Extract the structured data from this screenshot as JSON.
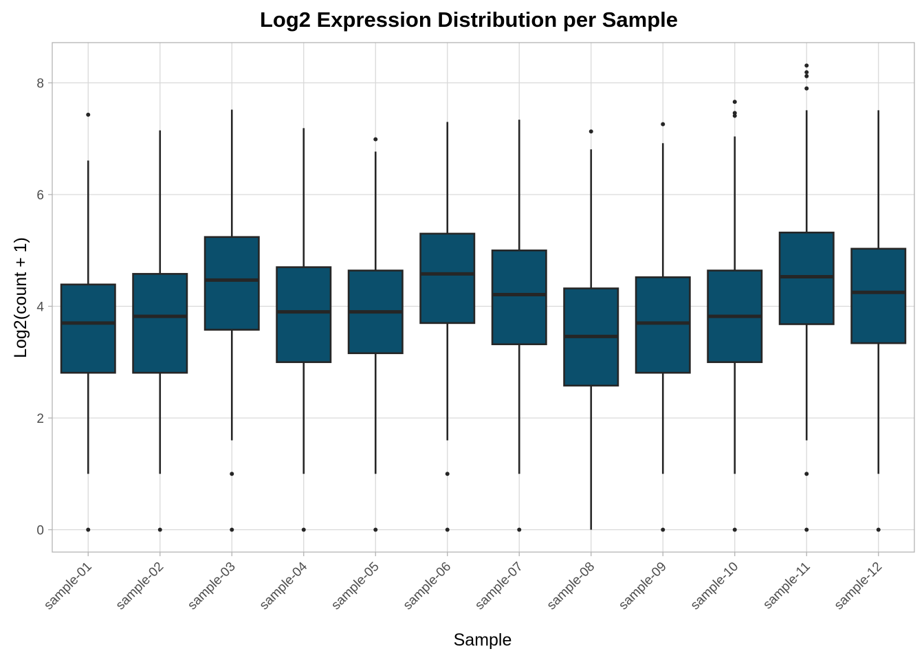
{
  "chart_data": {
    "type": "boxplot",
    "title": "Log2 Expression Distribution per Sample",
    "xlabel": "Sample",
    "ylabel": "Log2(count + 1)",
    "ylim": [
      -0.4,
      8.72
    ],
    "yticks": [
      0,
      2,
      4,
      6,
      8
    ],
    "grid": true,
    "legend": "none",
    "colors": {
      "box_fill": "#0B4F6C",
      "box_line": "#262626",
      "grid": "#d9d9d9",
      "panel_border": "#b3b3b3"
    },
    "categories": [
      "sample-01",
      "sample-02",
      "sample-03",
      "sample-04",
      "sample-05",
      "sample-06",
      "sample-07",
      "sample-08",
      "sample-09",
      "sample-10",
      "sample-11",
      "sample-12"
    ],
    "boxes": [
      {
        "whisker_low": 1.0,
        "q1": 2.81,
        "median": 3.7,
        "q3": 4.39,
        "whisker_high": 6.61,
        "outliers": [
          0,
          7.43
        ]
      },
      {
        "whisker_low": 1.0,
        "q1": 2.81,
        "median": 3.82,
        "q3": 4.58,
        "whisker_high": 7.15,
        "outliers": [
          0
        ]
      },
      {
        "whisker_low": 1.6,
        "q1": 3.58,
        "median": 4.47,
        "q3": 5.24,
        "whisker_high": 7.52,
        "outliers": [
          0,
          1.0
        ]
      },
      {
        "whisker_low": 1.0,
        "q1": 3.0,
        "median": 3.9,
        "q3": 4.7,
        "whisker_high": 7.19,
        "outliers": [
          0
        ]
      },
      {
        "whisker_low": 1.0,
        "q1": 3.16,
        "median": 3.9,
        "q3": 4.64,
        "whisker_high": 6.77,
        "outliers": [
          0,
          6.99
        ]
      },
      {
        "whisker_low": 1.6,
        "q1": 3.7,
        "median": 4.58,
        "q3": 5.3,
        "whisker_high": 7.3,
        "outliers": [
          0,
          1.0
        ]
      },
      {
        "whisker_low": 1.0,
        "q1": 3.32,
        "median": 4.21,
        "q3": 5.0,
        "whisker_high": 7.34,
        "outliers": [
          0
        ]
      },
      {
        "whisker_low": 0.0,
        "q1": 2.58,
        "median": 3.46,
        "q3": 4.32,
        "whisker_high": 6.81,
        "outliers": [
          7.13
        ]
      },
      {
        "whisker_low": 1.0,
        "q1": 2.81,
        "median": 3.7,
        "q3": 4.52,
        "whisker_high": 6.92,
        "outliers": [
          0,
          7.26
        ]
      },
      {
        "whisker_low": 1.0,
        "q1": 3.0,
        "median": 3.82,
        "q3": 4.64,
        "whisker_high": 7.04,
        "outliers": [
          0,
          7.41,
          7.46,
          7.66
        ]
      },
      {
        "whisker_low": 1.6,
        "q1": 3.68,
        "median": 4.53,
        "q3": 5.32,
        "whisker_high": 7.51,
        "outliers": [
          0,
          1.0,
          7.9,
          8.12,
          8.19,
          8.31
        ]
      },
      {
        "whisker_low": 1.0,
        "q1": 3.34,
        "median": 4.25,
        "q3": 5.03,
        "whisker_high": 7.51,
        "outliers": [
          0
        ]
      }
    ]
  }
}
